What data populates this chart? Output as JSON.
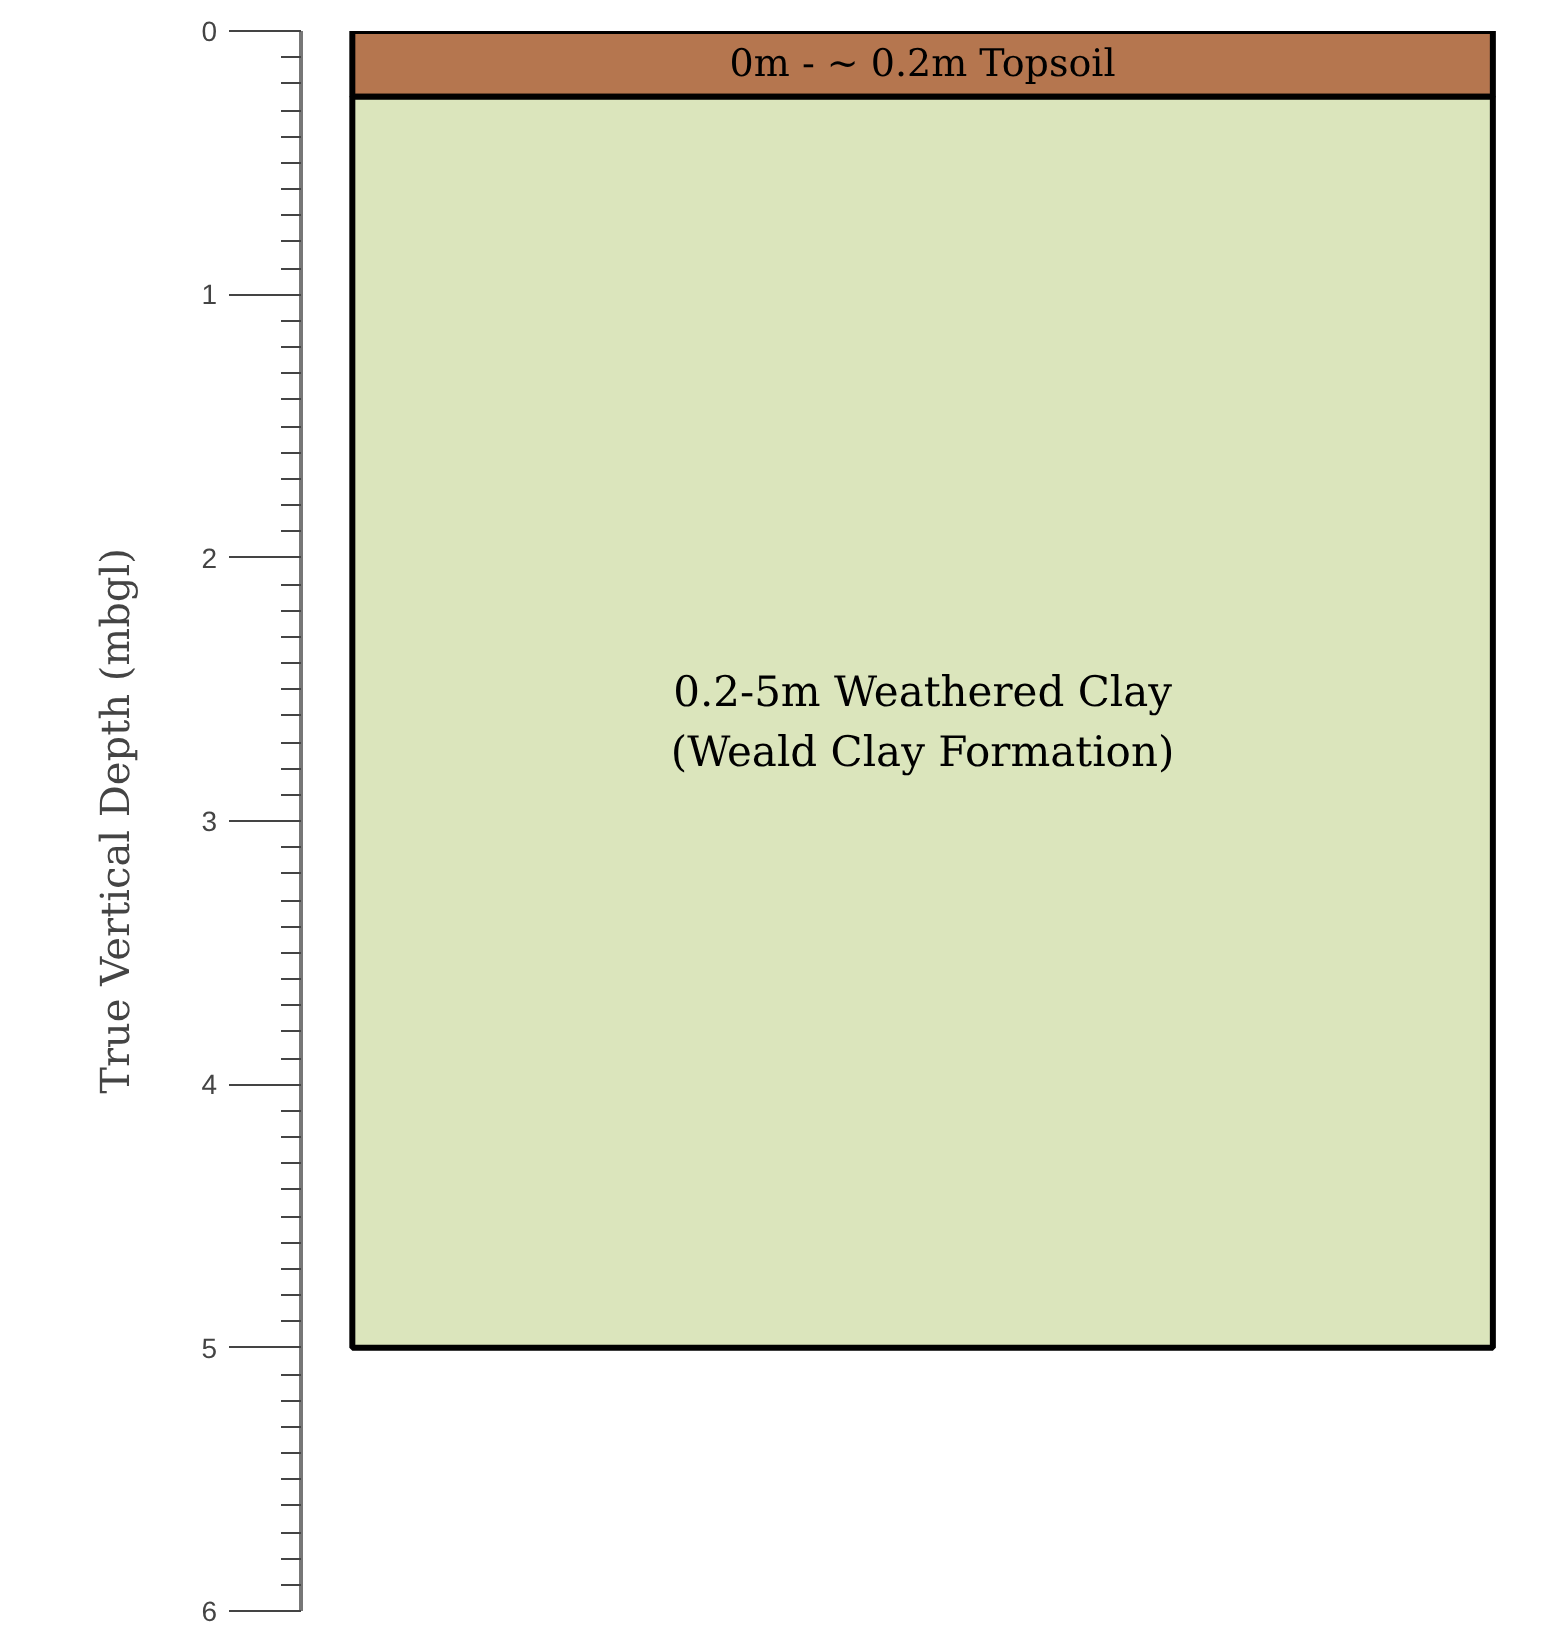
{
  "chart_data": {
    "type": "bar",
    "stacked": true,
    "ylabel": "True Vertical Depth (mbgl)",
    "categories": [
      null
    ],
    "series": [
      {
        "name": "0m - ~ 0.2m Topsoil",
        "color": "#b5764f",
        "values": [
          0.25
        ]
      },
      {
        "name": "0.2-5m Weathered Clay\n(Weald Clay Formation)",
        "color": "#dbe5bc",
        "values": [
          4.75
        ]
      }
    ],
    "ylim": [
      6,
      0
    ],
    "yticks": [
      0,
      1,
      2,
      3,
      4,
      5,
      6
    ],
    "grid": false,
    "tick_labels": "y"
  }
}
